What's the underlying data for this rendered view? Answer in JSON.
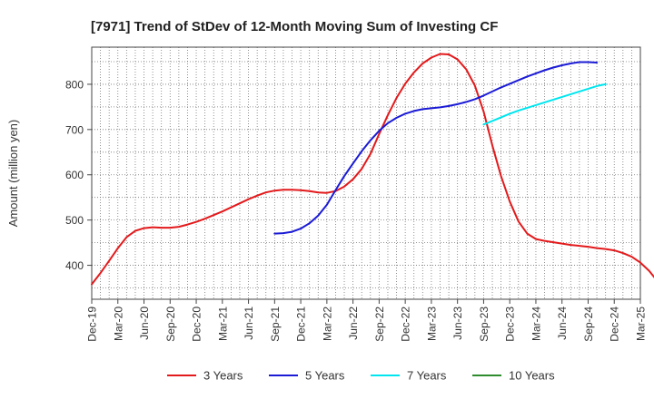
{
  "chart_data": {
    "type": "line",
    "title": "[7971]  Trend of StDev of 12-Month Moving Sum of Investing CF",
    "ylabel": "Amount (million yen)",
    "xlabel": "",
    "ylim": [
      325,
      882
    ],
    "yticks": [
      400,
      500,
      600,
      700,
      800
    ],
    "xlim": [
      "Dec-19",
      "Mar-25"
    ],
    "xticks": [
      "Dec-19",
      "Mar-20",
      "Jun-20",
      "Sep-20",
      "Dec-20",
      "Mar-21",
      "Jun-21",
      "Sep-21",
      "Dec-21",
      "Mar-22",
      "Jun-22",
      "Sep-22",
      "Dec-22",
      "Mar-23",
      "Jun-23",
      "Sep-23",
      "Dec-23",
      "Mar-24",
      "Jun-24",
      "Sep-24",
      "Dec-24",
      "Mar-25"
    ],
    "grid": true,
    "legend_position": "bottom",
    "series": [
      {
        "name": "3 Years",
        "color": "#e31a1c",
        "start": "Dec-19",
        "values": [
          358,
          383,
          410,
          438,
          462,
          476,
          482,
          484,
          483,
          483,
          485,
          490,
          496,
          503,
          511,
          519,
          528,
          537,
          546,
          554,
          561,
          565,
          567,
          567,
          566,
          564,
          561,
          560,
          564,
          574,
          590,
          613,
          646,
          690,
          732,
          770,
          801,
          826,
          846,
          859,
          867,
          866,
          855,
          833,
          797,
          740,
          665,
          597,
          541,
          497,
          470,
          458,
          454,
          451,
          448,
          445,
          443,
          441,
          438,
          436,
          433,
          427,
          419,
          406,
          388,
          364,
          338
        ]
      },
      {
        "name": "5 Years",
        "color": "#1b1bd6",
        "start": "Sep-21",
        "values": [
          470,
          471,
          474,
          481,
          493,
          510,
          534,
          566,
          597,
          625,
          652,
          676,
          697,
          714,
          726,
          735,
          741,
          745,
          747,
          749,
          752,
          756,
          761,
          767,
          775,
          784,
          793,
          801,
          809,
          817,
          824,
          831,
          837,
          842,
          846,
          849,
          849,
          848
        ]
      },
      {
        "name": "7 Years",
        "color": "#00e5ee",
        "start": "Sep-23",
        "values": [
          711,
          719,
          727,
          735,
          742,
          748,
          754,
          760,
          766,
          772,
          778,
          784,
          790,
          796,
          800
        ]
      },
      {
        "name": "10 Years",
        "color": "#2e8b2e",
        "start": "Dec-19",
        "values": []
      }
    ]
  }
}
